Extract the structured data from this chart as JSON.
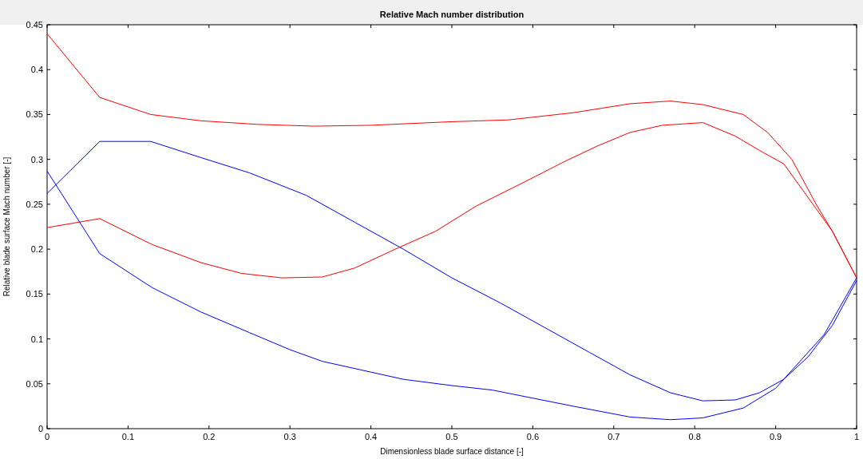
{
  "chart_data": {
    "type": "line",
    "title": "Relative Mach number distribution",
    "xlabel": "Dimensionless blade surface distance [-]",
    "ylabel": "Relative blade surface Mach number [-]",
    "xlim": [
      0,
      1
    ],
    "ylim": [
      0,
      0.45
    ],
    "xticks": [
      0,
      0.1,
      0.2,
      0.3,
      0.4,
      0.5,
      0.6,
      0.7,
      0.8,
      0.9,
      1
    ],
    "yticks": [
      0,
      0.05,
      0.1,
      0.15,
      0.2,
      0.25,
      0.3,
      0.35,
      0.4,
      0.45
    ],
    "grid": false,
    "series": [
      {
        "color": "#ff0000",
        "x": [
          0,
          0.065,
          0.128,
          0.19,
          0.26,
          0.33,
          0.4,
          0.5,
          0.57,
          0.65,
          0.72,
          0.77,
          0.81,
          0.86,
          0.89,
          0.92,
          0.95,
          0.97,
          1
        ],
        "values": [
          0.44,
          0.369,
          0.35,
          0.343,
          0.339,
          0.337,
          0.338,
          0.342,
          0.344,
          0.352,
          0.362,
          0.365,
          0.361,
          0.35,
          0.33,
          0.3,
          0.25,
          0.22,
          0.168
        ]
      },
      {
        "color": "#ff0000",
        "x": [
          0,
          0.065,
          0.13,
          0.19,
          0.24,
          0.29,
          0.34,
          0.38,
          0.43,
          0.48,
          0.53,
          0.59,
          0.64,
          0.68,
          0.72,
          0.76,
          0.81,
          0.85,
          0.88,
          0.91,
          0.95,
          0.97,
          1
        ],
        "values": [
          0.224,
          0.234,
          0.205,
          0.185,
          0.173,
          0.168,
          0.169,
          0.179,
          0.2,
          0.22,
          0.248,
          0.275,
          0.298,
          0.315,
          0.33,
          0.338,
          0.341,
          0.326,
          0.31,
          0.295,
          0.245,
          0.22,
          0.168
        ]
      },
      {
        "color": "#0000ff",
        "x": [
          0,
          0.065,
          0.128,
          0.19,
          0.25,
          0.32,
          0.38,
          0.44,
          0.5,
          0.56,
          0.62,
          0.67,
          0.72,
          0.77,
          0.81,
          0.85,
          0.88,
          0.91,
          0.94,
          0.97,
          1
        ],
        "values": [
          0.262,
          0.32,
          0.32,
          0.302,
          0.285,
          0.26,
          0.23,
          0.2,
          0.168,
          0.14,
          0.11,
          0.085,
          0.06,
          0.04,
          0.031,
          0.032,
          0.04,
          0.055,
          0.08,
          0.115,
          0.165
        ]
      },
      {
        "color": "#0000ff",
        "x": [
          0,
          0.065,
          0.13,
          0.19,
          0.25,
          0.3,
          0.34,
          0.4,
          0.44,
          0.5,
          0.55,
          0.6,
          0.65,
          0.72,
          0.77,
          0.81,
          0.86,
          0.9,
          0.93,
          0.96,
          1
        ],
        "values": [
          0.287,
          0.195,
          0.157,
          0.13,
          0.107,
          0.088,
          0.075,
          0.063,
          0.055,
          0.048,
          0.043,
          0.034,
          0.025,
          0.013,
          0.01,
          0.012,
          0.023,
          0.045,
          0.075,
          0.105,
          0.168
        ]
      }
    ]
  }
}
